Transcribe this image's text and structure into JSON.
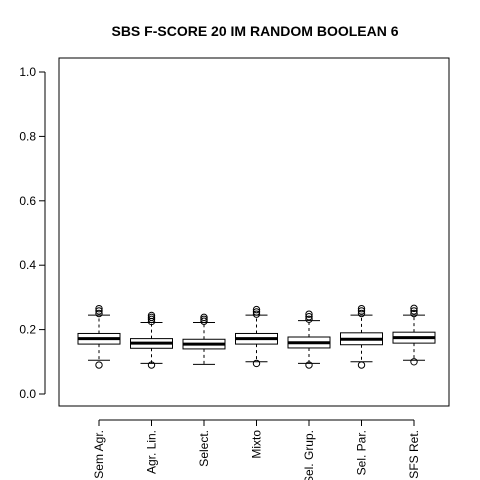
{
  "chart_data": {
    "type": "boxplot",
    "title": "SBS F-SCORE 20 IM RANDOM BOOLEAN 6",
    "xlabel": "",
    "ylabel": "",
    "ylim": [
      0,
      1
    ],
    "yticks": [
      "0.0",
      "0.2",
      "0.4",
      "0.6",
      "0.8",
      "1.0"
    ],
    "categories": [
      "Sem Agr.",
      "Agr. Lin.",
      "Select.",
      "Mixto",
      "Sel. Grup.",
      "Sel. Par.",
      "SFS Ret."
    ],
    "boxes": [
      {
        "whisker_low": 0.105,
        "q1": 0.155,
        "median": 0.172,
        "q3": 0.188,
        "whisker_high": 0.245,
        "outliers": [
          0.09,
          0.25,
          0.258,
          0.265
        ]
      },
      {
        "whisker_low": 0.095,
        "q1": 0.142,
        "median": 0.158,
        "q3": 0.172,
        "whisker_high": 0.222,
        "outliers": [
          0.09,
          0.225,
          0.232,
          0.238,
          0.244
        ]
      },
      {
        "whisker_low": 0.092,
        "q1": 0.14,
        "median": 0.155,
        "q3": 0.17,
        "whisker_high": 0.222,
        "outliers": [
          0.226,
          0.232,
          0.238
        ]
      },
      {
        "whisker_low": 0.1,
        "q1": 0.155,
        "median": 0.172,
        "q3": 0.188,
        "whisker_high": 0.245,
        "outliers": [
          0.095,
          0.248,
          0.255,
          0.262
        ]
      },
      {
        "whisker_low": 0.095,
        "q1": 0.143,
        "median": 0.159,
        "q3": 0.177,
        "whisker_high": 0.228,
        "outliers": [
          0.09,
          0.232,
          0.24,
          0.248
        ]
      },
      {
        "whisker_low": 0.1,
        "q1": 0.153,
        "median": 0.17,
        "q3": 0.19,
        "whisker_high": 0.245,
        "outliers": [
          0.09,
          0.25,
          0.258,
          0.265
        ]
      },
      {
        "whisker_low": 0.105,
        "q1": 0.158,
        "median": 0.175,
        "q3": 0.192,
        "whisker_high": 0.245,
        "outliers": [
          0.1,
          0.25,
          0.258,
          0.266
        ]
      }
    ],
    "grid": false,
    "legend": "none",
    "colors": {
      "line": "#000000",
      "box_fill": "#ffffff",
      "background": "#ffffff"
    }
  }
}
